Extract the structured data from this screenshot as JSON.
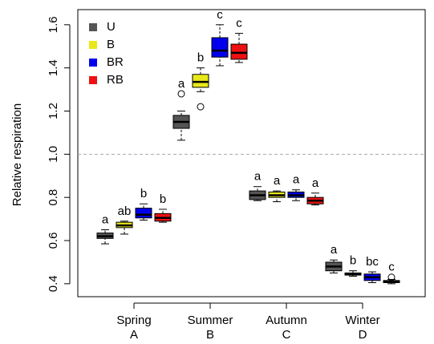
{
  "chart_data": {
    "type": "box",
    "y_label": "Relative respiration",
    "categories": [
      "Spring",
      "Summer",
      "Autumn",
      "Winter"
    ],
    "category_sublabels": [
      "A",
      "B",
      "C",
      "D"
    ],
    "ylim": [
      0.34,
      1.67
    ],
    "yticks": [
      0.4,
      0.6,
      0.8,
      {
        "value": 1,
        "label": "1.0"
      },
      1.2,
      1.4,
      1.6
    ],
    "reference_line": {
      "value": 1,
      "color": "#aaaaaa"
    },
    "legend_position": "top-left",
    "series": [
      {
        "name": "U",
        "color": "#555555",
        "min": [
          0.585,
          1.065,
          0.785,
          0.45
        ],
        "q1": [
          0.61,
          1.12,
          0.79,
          0.46
        ],
        "median": [
          0.62,
          1.15,
          0.81,
          0.48
        ],
        "q3": [
          0.635,
          1.18,
          0.83,
          0.5
        ],
        "max": [
          0.65,
          1.2,
          0.85,
          0.51
        ],
        "outliers": [
          [],
          [
            1.28
          ],
          [],
          []
        ],
        "letters": [
          "a",
          "a",
          "a",
          "a"
        ]
      },
      {
        "name": "B",
        "color": "#e8e81a",
        "min": [
          0.63,
          1.29,
          0.78,
          0.435
        ],
        "q1": [
          0.66,
          1.31,
          0.8,
          0.44
        ],
        "median": [
          0.67,
          1.335,
          0.81,
          0.445
        ],
        "q3": [
          0.685,
          1.37,
          0.825,
          0.45
        ],
        "max": [
          0.69,
          1.4,
          0.83,
          0.46
        ],
        "outliers": [
          [],
          [
            1.22
          ],
          [],
          []
        ],
        "letters": [
          "ab",
          "b",
          "a",
          "b"
        ]
      },
      {
        "name": "BR",
        "color": "#0000ee",
        "min": [
          0.695,
          1.41,
          0.785,
          0.405
        ],
        "q1": [
          0.705,
          1.45,
          0.8,
          0.415
        ],
        "median": [
          0.72,
          1.48,
          0.81,
          0.43
        ],
        "q3": [
          0.75,
          1.54,
          0.825,
          0.445
        ],
        "max": [
          0.77,
          1.6,
          0.835,
          0.455
        ],
        "outliers": [
          [],
          [],
          [],
          []
        ],
        "letters": [
          "b",
          "c",
          "a",
          "bc"
        ]
      },
      {
        "name": "RB",
        "color": "#ee1111",
        "min": [
          0.685,
          1.425,
          0.765,
          0.4
        ],
        "q1": [
          0.69,
          1.44,
          0.77,
          0.405
        ],
        "median": [
          0.705,
          1.47,
          0.785,
          0.41
        ],
        "q3": [
          0.725,
          1.51,
          0.8,
          0.415
        ],
        "max": [
          0.745,
          1.56,
          0.82,
          0.42
        ],
        "outliers": [
          [],
          [],
          [],
          [
            0.43
          ]
        ],
        "letters": [
          "b",
          "c",
          "a",
          "c"
        ]
      }
    ]
  }
}
